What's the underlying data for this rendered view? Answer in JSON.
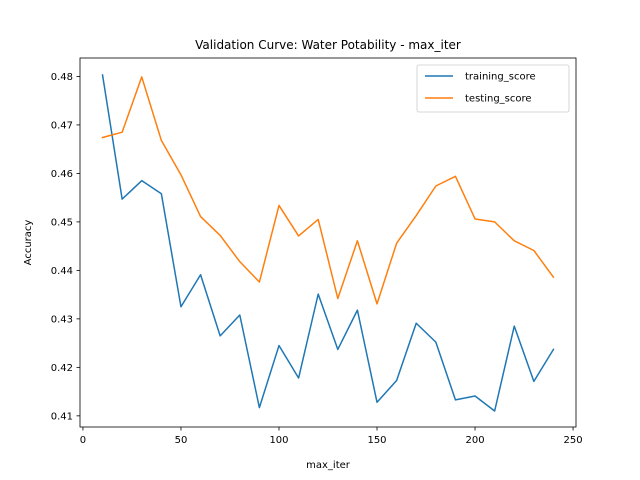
{
  "chart_data": {
    "type": "line",
    "title": "Validation Curve: Water Potability - max_iter",
    "xlabel": "max_iter",
    "ylabel": "Accuracy",
    "xlim": [
      -1.5,
      251.5
    ],
    "ylim": [
      0.4077,
      0.4838
    ],
    "xticks": [
      0,
      50,
      100,
      150,
      200,
      250
    ],
    "yticks": [
      0.41,
      0.42,
      0.43,
      0.44,
      0.45,
      0.46,
      0.47,
      0.48
    ],
    "x": [
      10,
      20,
      30,
      40,
      50,
      60,
      70,
      80,
      90,
      100,
      110,
      120,
      130,
      140,
      150,
      160,
      170,
      180,
      190,
      200,
      210,
      220,
      230,
      240
    ],
    "series": [
      {
        "name": "training_score",
        "color": "#1f77b4",
        "values": [
          0.4803,
          0.4547,
          0.4585,
          0.4558,
          0.4325,
          0.4391,
          0.4265,
          0.4308,
          0.4117,
          0.4245,
          0.4178,
          0.4351,
          0.4237,
          0.4318,
          0.4128,
          0.4173,
          0.4291,
          0.4252,
          0.4133,
          0.4141,
          0.411,
          0.4285,
          0.4171,
          0.4237
        ]
      },
      {
        "name": "testing_score",
        "color": "#ff7f0e",
        "values": [
          0.4674,
          0.4685,
          0.4799,
          0.4668,
          0.4597,
          0.4511,
          0.4472,
          0.4418,
          0.4376,
          0.4534,
          0.4471,
          0.4505,
          0.4342,
          0.4461,
          0.4331,
          0.4456,
          0.4513,
          0.4574,
          0.4594,
          0.4506,
          0.45,
          0.4461,
          0.4441,
          0.4386
        ]
      }
    ],
    "grid": false,
    "legend_position": "top-right"
  }
}
